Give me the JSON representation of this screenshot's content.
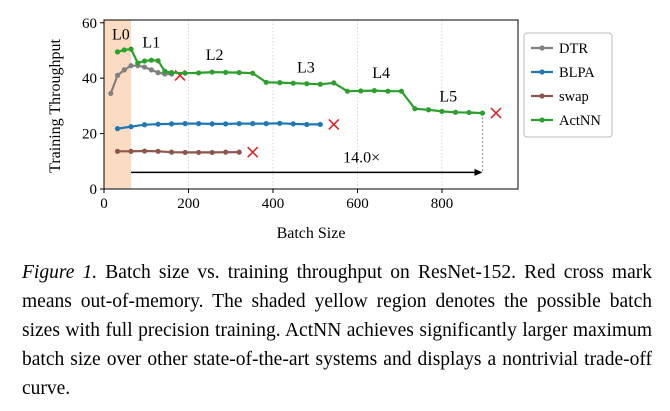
{
  "chart_data": {
    "type": "line",
    "xlabel": "Batch Size",
    "ylabel": "Training Throughput",
    "xlim": [
      0,
      980
    ],
    "ylim": [
      0,
      61
    ],
    "xticks": [
      0,
      200,
      400,
      600,
      800
    ],
    "yticks": [
      0,
      20,
      40,
      60
    ],
    "grid": "vertical dotted",
    "legend_position": "right",
    "shaded_region": {
      "x": [
        0,
        64
      ],
      "color": "#fbdcc3"
    },
    "series": [
      {
        "name": "DTR",
        "color": "#808080",
        "x": [
          16,
          32,
          48,
          64,
          80,
          96,
          112,
          128,
          144,
          160
        ],
        "y": [
          34.5,
          41,
          43,
          44.5,
          44.5,
          44,
          43,
          42,
          41.5,
          41.5
        ],
        "oom": [
          180,
          41
        ]
      },
      {
        "name": "BLPA",
        "color": "#1f77b4",
        "x": [
          32,
          64,
          96,
          128,
          160,
          192,
          224,
          256,
          288,
          320,
          352,
          384,
          416,
          448,
          480,
          512
        ],
        "y": [
          21.8,
          22.5,
          23.2,
          23.4,
          23.5,
          23.6,
          23.6,
          23.5,
          23.5,
          23.6,
          23.6,
          23.6,
          23.7,
          23.5,
          23.3,
          23.3
        ],
        "oom": [
          544,
          23.3
        ]
      },
      {
        "name": "swap",
        "color": "#8c564b",
        "x": [
          32,
          64,
          96,
          128,
          160,
          192,
          224,
          256,
          288,
          320
        ],
        "y": [
          13.6,
          13.6,
          13.7,
          13.6,
          13.3,
          13.2,
          13.2,
          13.2,
          13.3,
          13.3
        ],
        "oom": [
          352,
          13.3
        ]
      },
      {
        "name": "ActNN",
        "color": "#2ca02c",
        "x": [
          32,
          48,
          64,
          80,
          96,
          112,
          128,
          144,
          160,
          192,
          224,
          256,
          288,
          320,
          352,
          384,
          416,
          448,
          480,
          512,
          544,
          576,
          608,
          640,
          672,
          704,
          736,
          768,
          800,
          832,
          864,
          896
        ],
        "y": [
          49.5,
          50.2,
          50.5,
          45.5,
          46.2,
          46.5,
          46.3,
          42.5,
          42,
          41.8,
          41.9,
          42.2,
          42.1,
          42,
          41.8,
          38.5,
          38.4,
          38.2,
          38,
          37.8,
          38.3,
          35.3,
          35.4,
          35.5,
          35.3,
          35.3,
          29,
          28.6,
          28,
          27.7,
          27.6,
          27.4
        ],
        "oom": [
          928,
          27.4
        ]
      }
    ],
    "annotations": {
      "levels": [
        {
          "label": "L0",
          "x": 40,
          "y": 54
        },
        {
          "label": "L1",
          "x": 112,
          "y": 51
        },
        {
          "label": "L2",
          "x": 262,
          "y": 46.5
        },
        {
          "label": "L3",
          "x": 478,
          "y": 42
        },
        {
          "label": "L4",
          "x": 656,
          "y": 40
        },
        {
          "label": "L5",
          "x": 815,
          "y": 31.5
        }
      ],
      "ratio_arrow": {
        "label": "14.0×",
        "x_from": 64,
        "x_to": 896,
        "y": 6,
        "label_x": 610,
        "label_y": 9.5
      }
    }
  },
  "caption": {
    "label": "Figure 1.",
    "text": "Batch size vs. training throughput on ResNet-152. Red cross mark means out-of-memory.  The shaded yellow region denotes the possible batch sizes with full precision training. ActNN achieves significantly larger maximum batch size over other state-of-the-art systems and displays a nontrivial trade-off curve."
  }
}
